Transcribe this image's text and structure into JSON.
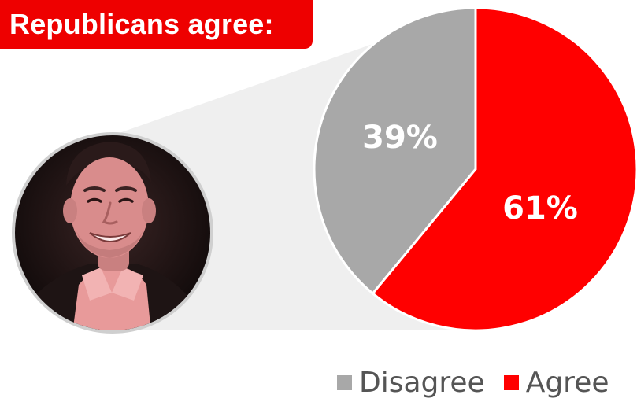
{
  "title": "Republicans agree:",
  "photo": {
    "subject_icon": "smiling-man-portrait",
    "tint_color": "#e8a0a0"
  },
  "colors": {
    "agree": "#ff0000",
    "disagree": "#a8a8a8",
    "title_bg": "#ee0000",
    "callout": "#efefef"
  },
  "chart_data": {
    "type": "pie",
    "title": "",
    "slices": [
      {
        "name": "Disagree",
        "value": 39,
        "label": "39%",
        "color": "#a8a8a8"
      },
      {
        "name": "Agree",
        "value": 61,
        "label": "61%",
        "color": "#ff0000"
      }
    ],
    "legend": {
      "placement": "bottom-right",
      "items": [
        "Disagree",
        "Agree"
      ]
    }
  }
}
